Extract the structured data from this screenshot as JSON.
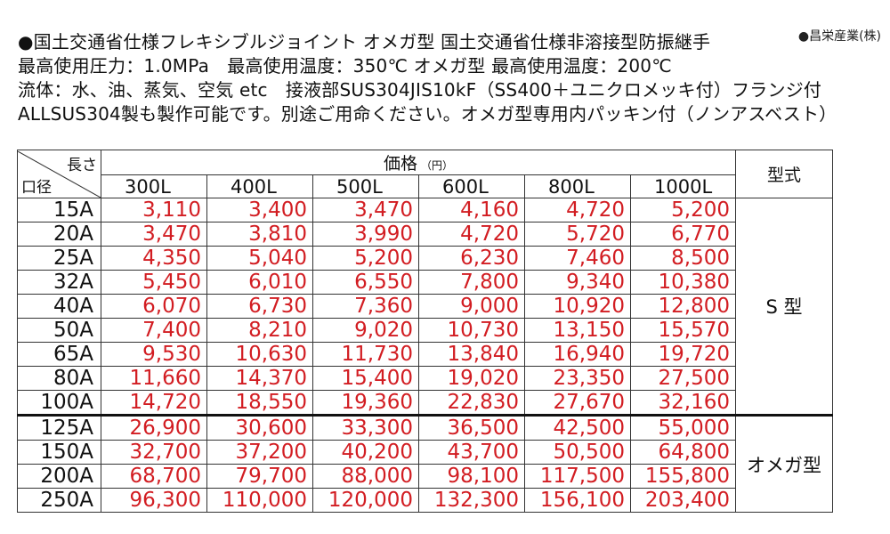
{
  "company": "●昌栄産業(株)",
  "header": {
    "lines": [
      "●国土交通省仕様フレキシブルジョイント オメガ型 国土交通省仕様非溶接型防振継手",
      "最高使用圧力：1.0MPa　最高使用温度：350℃ オメガ型 最高使用温度：200℃",
      "流体：水、油、蒸気、空気 etc　接液部SUS304JIS10kF（SS400＋ユニクロメッキ付）フランジ付",
      "ALLSUS304製も製作可能です。別途ご用命ください。オメガ型専用内パッキン付（ノンアスベスト）"
    ]
  },
  "table": {
    "corner_top": "長さ",
    "corner_bottom": "口径",
    "price_label": "価格",
    "price_unit": "（円）",
    "type_label": "型式",
    "lengths": [
      "300L",
      "400L",
      "500L",
      "600L",
      "800L",
      "1000L"
    ],
    "groups": [
      {
        "type": "S 型",
        "rows": [
          {
            "size": "15A",
            "prices": [
              "3,110",
              "3,400",
              "3,470",
              "4,160",
              "4,720",
              "5,200"
            ]
          },
          {
            "size": "20A",
            "prices": [
              "3,470",
              "3,810",
              "3,990",
              "4,720",
              "5,720",
              "6,770"
            ]
          },
          {
            "size": "25A",
            "prices": [
              "4,350",
              "5,040",
              "5,200",
              "6,230",
              "7,460",
              "8,500"
            ]
          },
          {
            "size": "32A",
            "prices": [
              "5,450",
              "6,010",
              "6,550",
              "7,800",
              "9,340",
              "10,380"
            ]
          },
          {
            "size": "40A",
            "prices": [
              "6,070",
              "6,730",
              "7,360",
              "9,000",
              "10,920",
              "12,800"
            ]
          },
          {
            "size": "50A",
            "prices": [
              "7,400",
              "8,210",
              "9,020",
              "10,730",
              "13,150",
              "15,570"
            ]
          },
          {
            "size": "65A",
            "prices": [
              "9,530",
              "10,630",
              "11,730",
              "13,840",
              "16,940",
              "19,720"
            ]
          },
          {
            "size": "80A",
            "prices": [
              "11,660",
              "14,370",
              "15,400",
              "19,020",
              "23,350",
              "27,500"
            ]
          },
          {
            "size": "100A",
            "prices": [
              "14,720",
              "18,550",
              "19,360",
              "22,830",
              "27,670",
              "32,160"
            ]
          }
        ]
      },
      {
        "type": "オメガ型",
        "rows": [
          {
            "size": "125A",
            "prices": [
              "26,900",
              "30,600",
              "33,300",
              "36,500",
              "42,500",
              "55,000"
            ]
          },
          {
            "size": "150A",
            "prices": [
              "32,700",
              "37,200",
              "40,200",
              "43,700",
              "50,500",
              "64,800"
            ]
          },
          {
            "size": "200A",
            "prices": [
              "68,700",
              "79,700",
              "88,000",
              "98,100",
              "117,500",
              "155,800"
            ]
          },
          {
            "size": "250A",
            "prices": [
              "96,300",
              "110,000",
              "120,000",
              "132,300",
              "156,100",
              "203,400"
            ]
          }
        ]
      }
    ]
  },
  "colors": {
    "price_text": "#d21d22",
    "text": "#111111",
    "border": "#333333"
  }
}
